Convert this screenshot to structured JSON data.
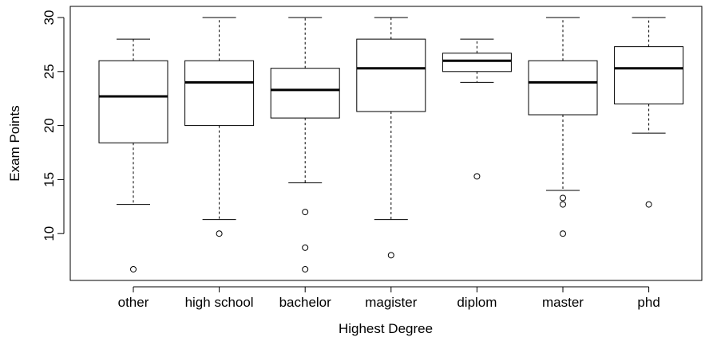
{
  "chart_data": {
    "type": "boxplot",
    "title": "",
    "xlabel": "Highest Degree",
    "ylabel": "Exam Points",
    "ylim": [
      5.7,
      30.5
    ],
    "yticks": [
      10,
      15,
      20,
      25,
      30
    ],
    "grid": false,
    "legend": "none",
    "colors": {
      "stroke": "#000000",
      "fill": "#ffffff",
      "background": "#ffffff"
    },
    "categories": [
      "other",
      "high school",
      "bachelor",
      "magister",
      "diplom",
      "master",
      "phd"
    ],
    "boxes": [
      {
        "category": "other",
        "whisker_low": 12.7,
        "q1": 18.4,
        "median": 22.7,
        "q3": 26.0,
        "whisker_high": 28.0,
        "outliers": [
          6.7
        ]
      },
      {
        "category": "high school",
        "whisker_low": 11.3,
        "q1": 20.0,
        "median": 24.0,
        "q3": 26.0,
        "whisker_high": 30.0,
        "outliers": [
          10.0
        ]
      },
      {
        "category": "bachelor",
        "whisker_low": 14.7,
        "q1": 20.7,
        "median": 23.3,
        "q3": 25.3,
        "whisker_high": 30.0,
        "outliers": [
          12.0,
          8.7,
          6.7
        ]
      },
      {
        "category": "magister",
        "whisker_low": 11.3,
        "q1": 21.3,
        "median": 25.3,
        "q3": 28.0,
        "whisker_high": 30.0,
        "outliers": [
          8.0
        ]
      },
      {
        "category": "diplom",
        "whisker_low": 24.0,
        "q1": 25.0,
        "median": 26.0,
        "q3": 26.7,
        "whisker_high": 28.0,
        "outliers": [
          15.3
        ]
      },
      {
        "category": "master",
        "whisker_low": 14.0,
        "q1": 21.0,
        "median": 24.0,
        "q3": 26.0,
        "whisker_high": 30.0,
        "outliers": [
          13.3,
          12.7,
          10.0
        ]
      },
      {
        "category": "phd",
        "whisker_low": 19.3,
        "q1": 22.0,
        "median": 25.3,
        "q3": 27.3,
        "whisker_high": 30.0,
        "outliers": [
          12.7
        ]
      }
    ]
  }
}
